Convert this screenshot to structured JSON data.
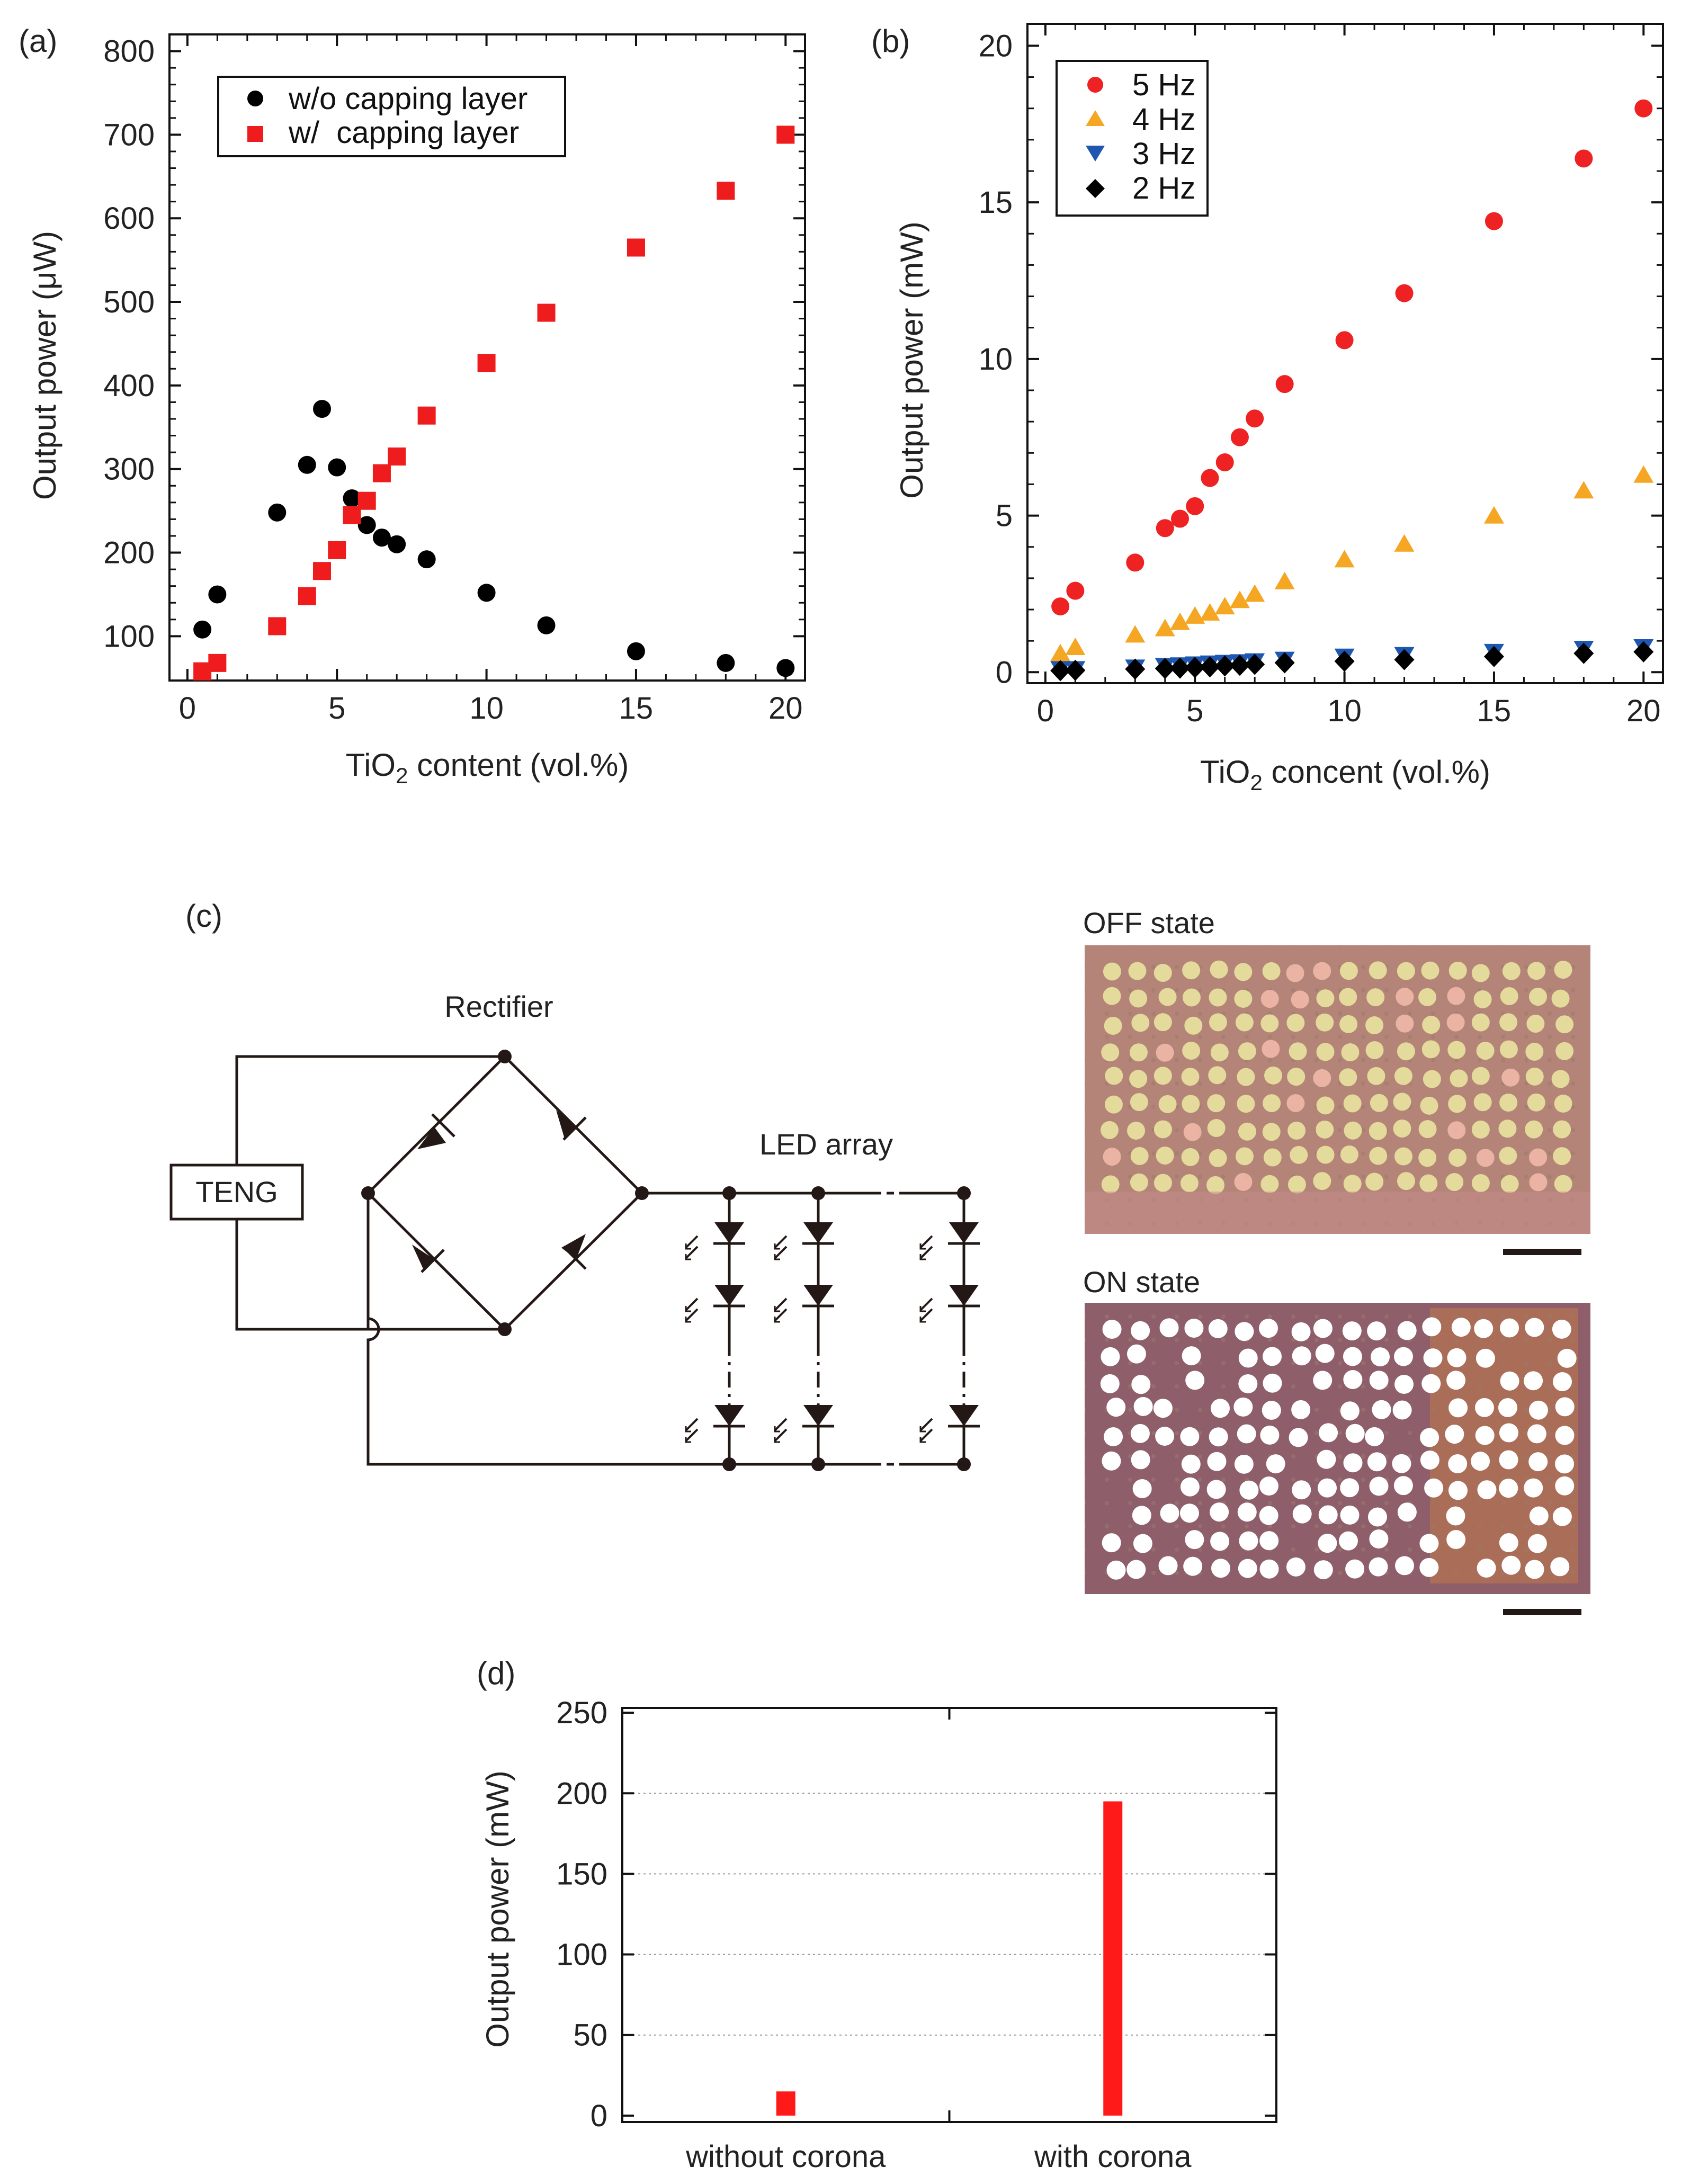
{
  "figure": {
    "panel_labels": {
      "a": "(a)",
      "b": "(b)",
      "c": "(c)",
      "d": "(d)"
    }
  },
  "chart_data": [
    {
      "id": "a",
      "type": "scatter",
      "xlabel_main": "TiO",
      "xlabel_sub": "2",
      "xlabel_rest": " content (vol.%)",
      "ylabel": "Output power (μW)",
      "xlim": [
        0,
        20
      ],
      "ylim": [
        50,
        800
      ],
      "xticks": [
        0,
        5,
        10,
        15,
        20
      ],
      "yticks": [
        100,
        200,
        300,
        400,
        500,
        600,
        700,
        800
      ],
      "grid": false,
      "legend_position": "top-left",
      "series": [
        {
          "name": "w/o capping layer",
          "marker": "circle",
          "color": "#000000",
          "x": [
            0.5,
            1,
            3,
            4,
            4.5,
            5,
            5.5,
            6,
            6.5,
            7,
            8,
            10,
            12,
            15,
            18,
            20
          ],
          "y": [
            108,
            150,
            248,
            305,
            372,
            302,
            265,
            233,
            218,
            210,
            192,
            152,
            113,
            82,
            68,
            62
          ]
        },
        {
          "name": "w/  capping layer",
          "marker": "square",
          "color": "#ee1c1c",
          "x": [
            0.5,
            1,
            3,
            4,
            4.5,
            5,
            5.5,
            6,
            6.5,
            7,
            8,
            10,
            12,
            15,
            18,
            20
          ],
          "y": [
            58,
            68,
            112,
            148,
            178,
            203,
            245,
            262,
            295,
            315,
            364,
            427,
            487,
            565,
            633,
            700
          ]
        }
      ]
    },
    {
      "id": "b",
      "type": "scatter",
      "xlabel_main": "TiO",
      "xlabel_sub": "2",
      "xlabel_rest": " concent (vol.%)",
      "ylabel": "Output power (mW)",
      "xlim": [
        0,
        20
      ],
      "ylim": [
        0,
        20
      ],
      "xticks": [
        0,
        5,
        10,
        15,
        20
      ],
      "yticks": [
        0,
        5,
        10,
        15,
        20
      ],
      "grid": false,
      "legend_position": "top-left",
      "series": [
        {
          "name": "5 Hz",
          "marker": "circle",
          "color": "#ee2222",
          "x": [
            0.5,
            1,
            3,
            4,
            4.5,
            5,
            5.5,
            6,
            6.5,
            7,
            8,
            10,
            12,
            15,
            18,
            20
          ],
          "y": [
            2.1,
            2.6,
            3.5,
            4.6,
            4.9,
            5.3,
            6.2,
            6.7,
            7.5,
            8.1,
            9.2,
            10.6,
            12.1,
            14.4,
            16.4,
            18.0
          ]
        },
        {
          "name": "4 Hz",
          "marker": "triangle-up",
          "color": "#f5a623",
          "x": [
            0.5,
            1,
            3,
            4,
            4.5,
            5,
            5.5,
            6,
            6.5,
            7,
            8,
            10,
            12,
            15,
            18,
            20
          ],
          "y": [
            0.6,
            0.8,
            1.2,
            1.4,
            1.6,
            1.8,
            1.9,
            2.1,
            2.3,
            2.5,
            2.9,
            3.6,
            4.1,
            5.0,
            5.8,
            6.3
          ]
        },
        {
          "name": "3 Hz",
          "marker": "triangle-down",
          "color": "#1f57b0",
          "x": [
            0.5,
            1,
            3,
            4,
            4.5,
            5,
            5.5,
            6,
            6.5,
            7,
            8,
            10,
            12,
            15,
            18,
            20
          ],
          "y": [
            0.1,
            0.1,
            0.15,
            0.2,
            0.22,
            0.25,
            0.28,
            0.3,
            0.32,
            0.35,
            0.4,
            0.5,
            0.55,
            0.65,
            0.75,
            0.8
          ]
        },
        {
          "name": "2 Hz",
          "marker": "diamond",
          "color": "#000000",
          "x": [
            0.5,
            1,
            3,
            4,
            4.5,
            5,
            5.5,
            6,
            6.5,
            7,
            8,
            10,
            12,
            15,
            18,
            20
          ],
          "y": [
            0.05,
            0.06,
            0.1,
            0.12,
            0.13,
            0.15,
            0.17,
            0.2,
            0.22,
            0.25,
            0.3,
            0.35,
            0.4,
            0.5,
            0.6,
            0.65
          ]
        }
      ]
    },
    {
      "id": "d",
      "type": "bar",
      "categories": [
        "without corona",
        "with corona"
      ],
      "values": [
        15,
        195
      ],
      "color": "#ff1a1a",
      "ylabel": "Output power (mW)",
      "ylim": [
        0,
        250
      ],
      "yticks": [
        0,
        50,
        100,
        150,
        200,
        250
      ],
      "grid": true
    }
  ],
  "circuit": {
    "rectifier_label": "Rectifier",
    "teng_label": "TENG",
    "led_array_label": "LED array"
  },
  "photos": {
    "off_label": "OFF state",
    "on_label": "ON state"
  }
}
